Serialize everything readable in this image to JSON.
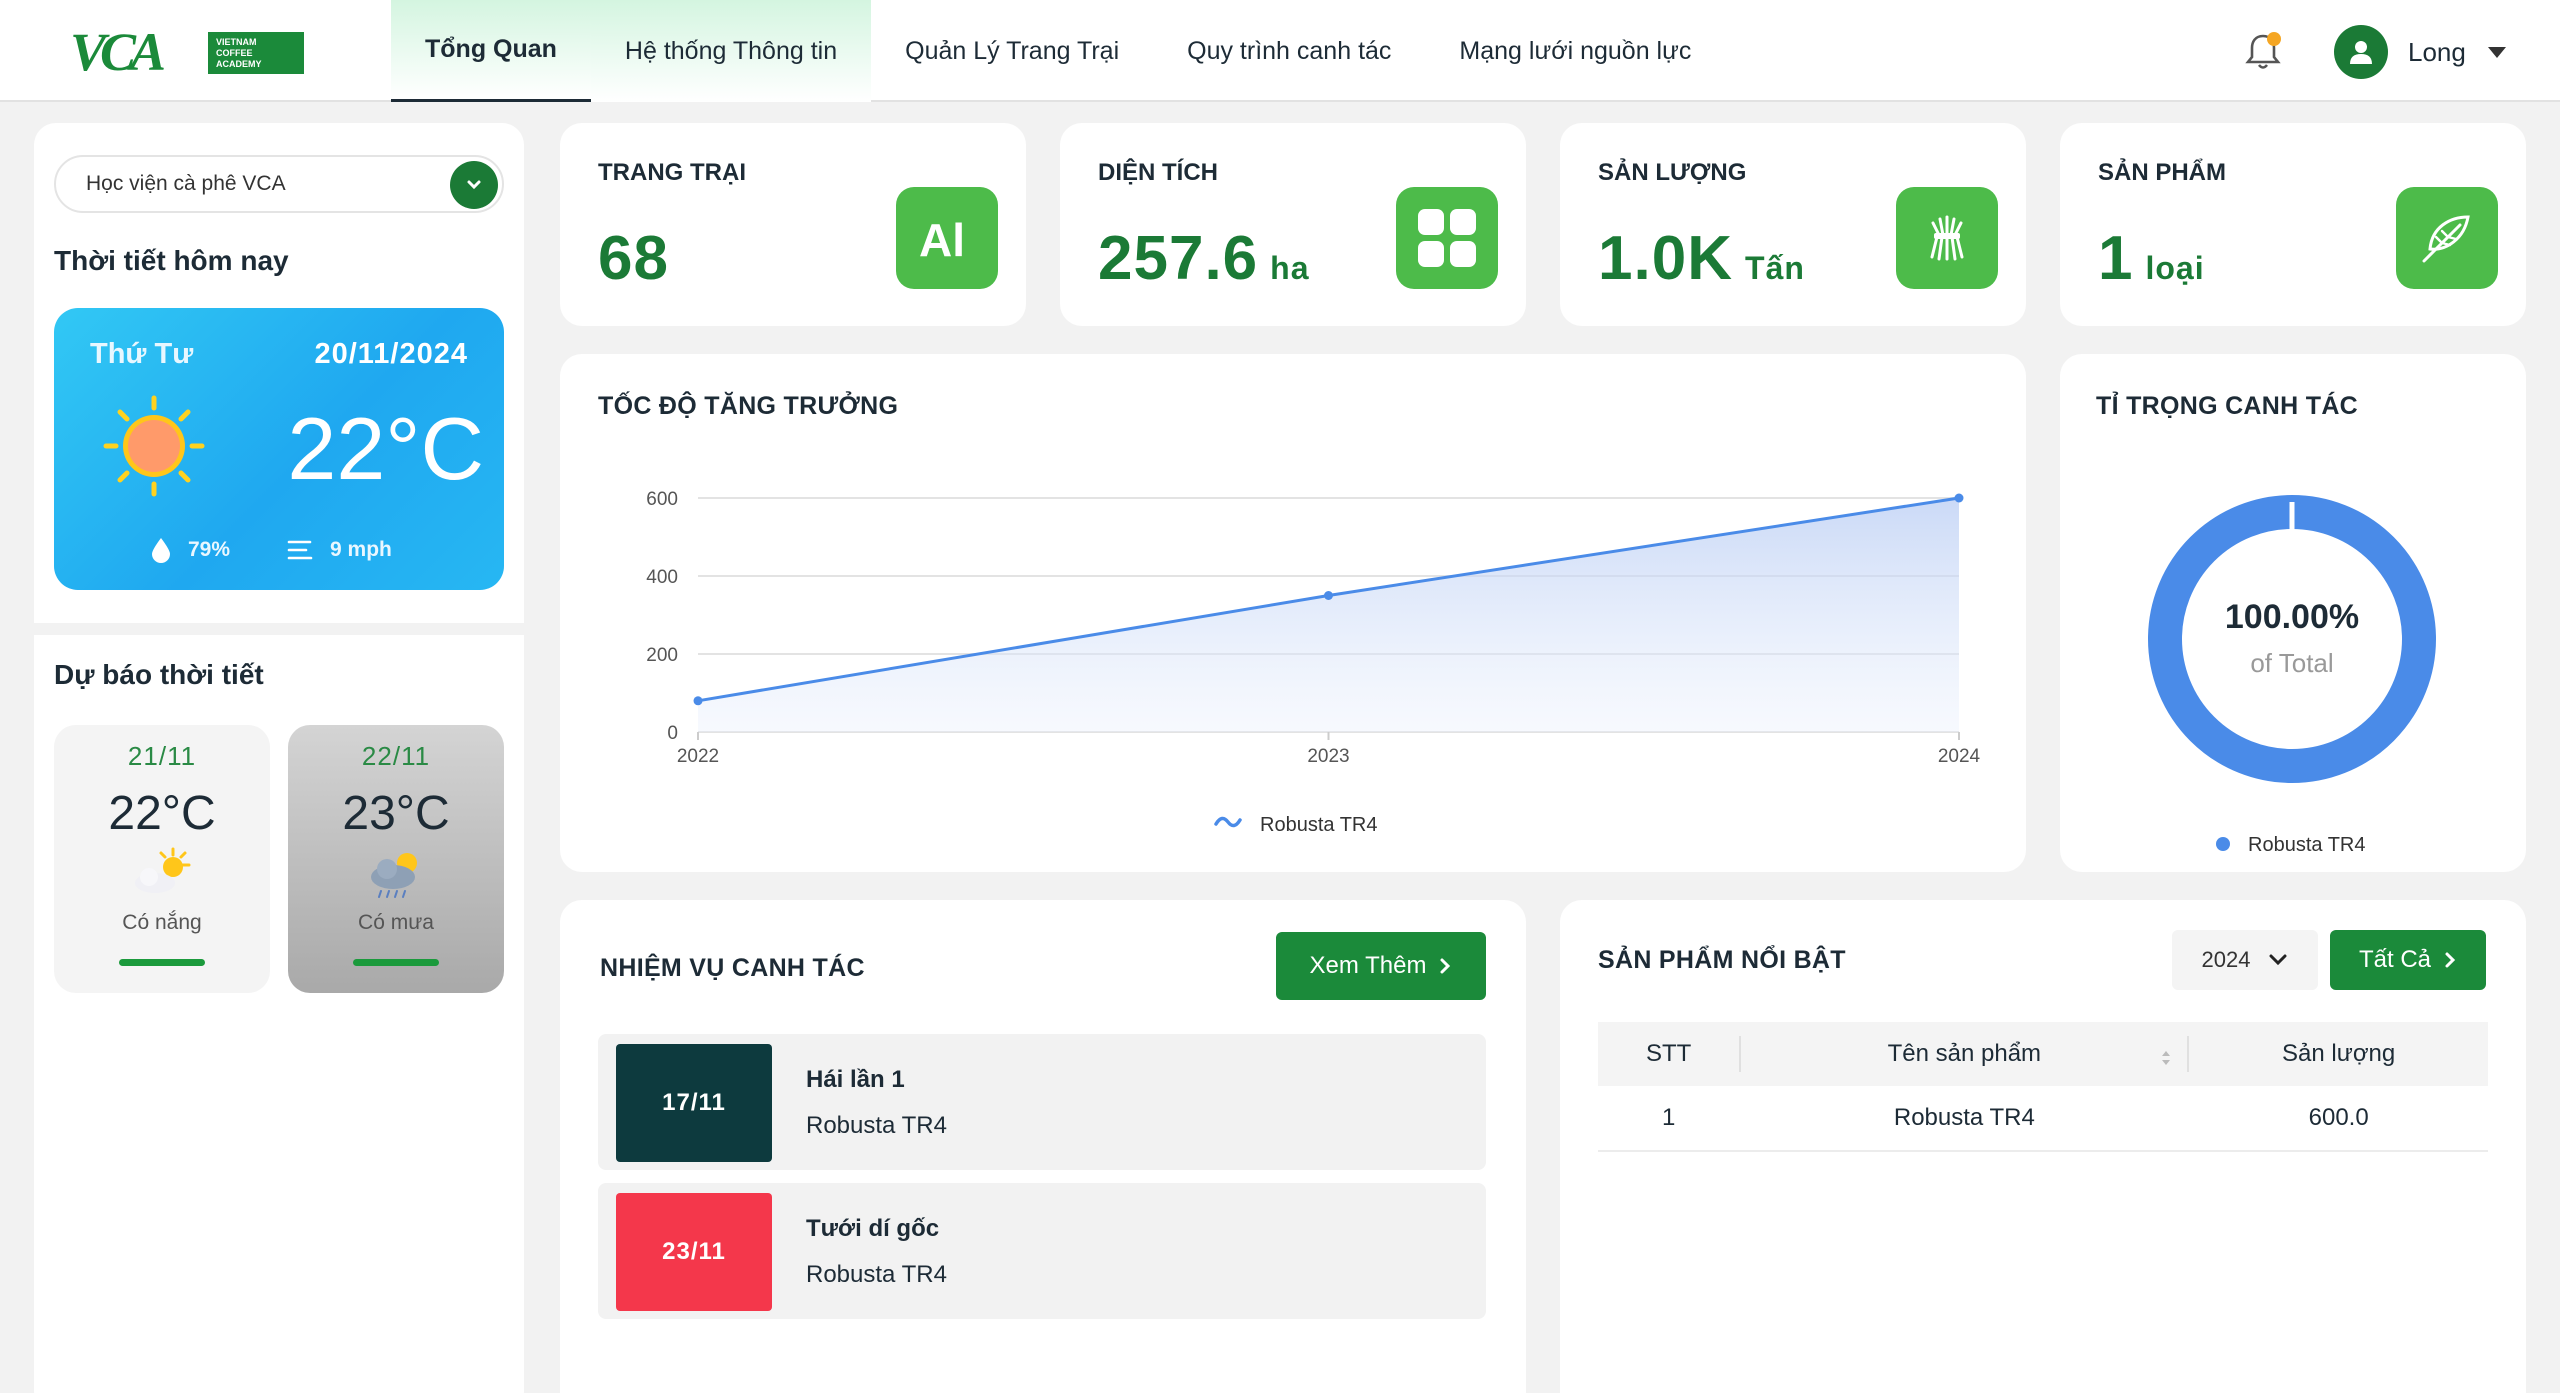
{
  "brand": {
    "logo_letters": "VCA",
    "logo_line1": "VIETNAM",
    "logo_line2": "COFFEE",
    "logo_line3": "ACADEMY"
  },
  "nav": {
    "items": [
      {
        "label": "Tổng Quan"
      },
      {
        "label": "Hệ thống Thông tin"
      },
      {
        "label": "Quản Lý Trang Trại"
      },
      {
        "label": "Quy trình canh tác"
      },
      {
        "label": "Mạng lưới nguồn lực"
      }
    ]
  },
  "user": {
    "name": "Long"
  },
  "sidebar": {
    "select_value": "Học viện cà phê VCA",
    "weather_title": "Thời tiết hôm nay",
    "today": {
      "day": "Thứ Tư",
      "date": "20/11/2024",
      "temp": "22°C",
      "humidity": "79%",
      "wind": "9 mph"
    },
    "forecast_title": "Dự báo thời tiết",
    "forecast": [
      {
        "date": "21/11",
        "temp": "22°C",
        "condition": "Có nắng"
      },
      {
        "date": "22/11",
        "temp": "23°C",
        "condition": "Có mưa"
      }
    ]
  },
  "stats": [
    {
      "label": "TRANG TRẠI",
      "value": "68",
      "unit": ""
    },
    {
      "label": "DIỆN TÍCH",
      "value": "257.6",
      "unit": "ha"
    },
    {
      "label": "SẢN LƯỢNG",
      "value": "1.0K",
      "unit": "Tấn"
    },
    {
      "label": "SẢN PHẨM",
      "value": "1",
      "unit": "loại"
    }
  ],
  "growth": {
    "title": "TỐC ĐỘ TĂNG TRƯỞNG"
  },
  "share": {
    "title": "TỈ TRỌNG CANH TÁC",
    "center_value": "100.00%",
    "center_label": "of Total",
    "legend": "Robusta TR4"
  },
  "chart_data": [
    {
      "type": "area",
      "x": [
        "2022",
        "2023",
        "2024"
      ],
      "series": [
        {
          "name": "Robusta TR4",
          "values": [
            80,
            350,
            600
          ]
        }
      ],
      "yticks": [
        0,
        200,
        400,
        600
      ],
      "ylim": [
        0,
        600
      ],
      "grid": true,
      "legend": "bottom",
      "color": "#4a8be8"
    },
    {
      "type": "pie",
      "categories": [
        "Robusta TR4"
      ],
      "values": [
        100
      ],
      "color": "#4a8be8"
    }
  ],
  "tasks": {
    "title": "NHIỆM VỤ CANH TÁC",
    "more_label": "Xem Thêm",
    "items": [
      {
        "date": "17/11",
        "name": "Hái lần 1",
        "product": "Robusta TR4",
        "color": "#0d3a3e"
      },
      {
        "date": "23/11",
        "name": "Tưới dí gốc",
        "product": "Robusta TR4",
        "color": "#f4374b"
      }
    ]
  },
  "products": {
    "title": "SẢN PHẨM NỔI BẬT",
    "year": "2024",
    "all_label": "Tất Cả",
    "columns": [
      "STT",
      "Tên sản phẩm",
      "Sản lượng"
    ],
    "rows": [
      {
        "stt": "1",
        "name": "Robusta TR4",
        "qty": "600.0"
      }
    ]
  },
  "colors": {
    "brand_green": "#1b7a36",
    "icon_green": "#4dbb4a",
    "chart_blue": "#4a8be8"
  }
}
